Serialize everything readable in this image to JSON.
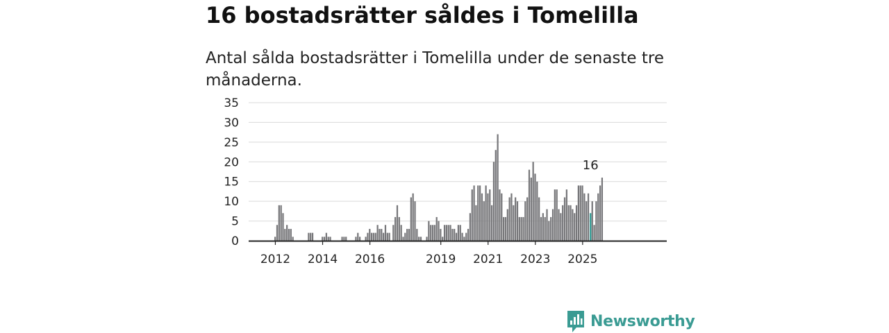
{
  "header": {
    "title": "16 bostadsrätter såldes i Tomelilla",
    "subtitle": "Antal sålda bostadsrätter i Tomelilla under de senaste tre månaderna."
  },
  "brand": {
    "name": "Newsworthy",
    "color": "#3a9b93"
  },
  "chart_data": {
    "type": "bar",
    "title": "",
    "xlabel": "",
    "ylabel": "",
    "ylim": [
      0,
      35
    ],
    "yticks": [
      0,
      5,
      10,
      15,
      20,
      25,
      30,
      35
    ],
    "grid": true,
    "colors": {
      "bar": "#77777a",
      "highlight": "#2f9c94"
    },
    "x_start": "2011-01",
    "x_unit": "month",
    "xticks": [
      {
        "label": "2012",
        "x": "2012-01"
      },
      {
        "label": "2014",
        "x": "2014-01"
      },
      {
        "label": "2016",
        "x": "2016-01"
      },
      {
        "label": "2019",
        "x": "2019-01"
      },
      {
        "label": "2021",
        "x": "2021-01"
      },
      {
        "label": "2023",
        "x": "2023-01"
      },
      {
        "label": "2025",
        "x": "2025-01"
      }
    ],
    "values": [
      0,
      0,
      0,
      0,
      0,
      0,
      0,
      0,
      0,
      0,
      0,
      0,
      1,
      4,
      9,
      9,
      7,
      3,
      4,
      3,
      3,
      1,
      0,
      0,
      0,
      0,
      0,
      0,
      0,
      2,
      2,
      2,
      0,
      0,
      0,
      0,
      1,
      1,
      2,
      1,
      1,
      0,
      0,
      0,
      0,
      0,
      1,
      1,
      1,
      0,
      0,
      0,
      0,
      1,
      2,
      1,
      0,
      0,
      1,
      2,
      3,
      2,
      2,
      2,
      4,
      3,
      3,
      2,
      4,
      2,
      2,
      0,
      4,
      6,
      9,
      6,
      4,
      1,
      2,
      3,
      3,
      11,
      12,
      10,
      3,
      1,
      1,
      0,
      0,
      1,
      5,
      4,
      4,
      4,
      6,
      5,
      3,
      1,
      4,
      4,
      4,
      4,
      3,
      3,
      2,
      4,
      4,
      2,
      1,
      2,
      3,
      7,
      13,
      14,
      9,
      14,
      14,
      12,
      10,
      14,
      12,
      13,
      9,
      20,
      23,
      27,
      13,
      12,
      6,
      6,
      8,
      11,
      12,
      9,
      11,
      10,
      6,
      6,
      6,
      10,
      11,
      18,
      16,
      20,
      17,
      15,
      11,
      6,
      7,
      6,
      8,
      5,
      6,
      8,
      13,
      13,
      8,
      7,
      9,
      11,
      13,
      9,
      9,
      8,
      7,
      9,
      14,
      14,
      14,
      12,
      10,
      12,
      7,
      10,
      4,
      10,
      12,
      14,
      16
    ],
    "highlight": {
      "x": "2025-05",
      "value": 16,
      "label": "16"
    }
  }
}
